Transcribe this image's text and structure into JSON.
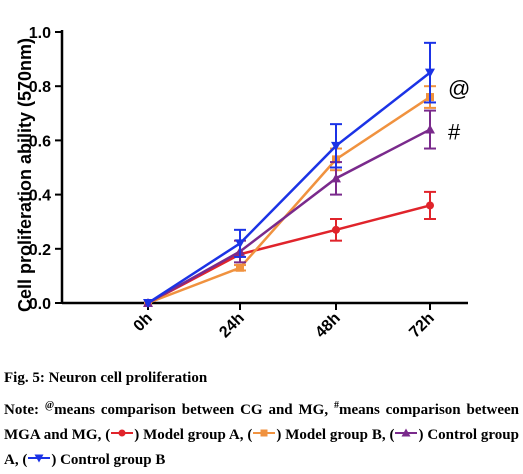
{
  "chart_data": {
    "type": "line",
    "ylabel": "Cell proliferation ability (570nm)",
    "xlabel": "",
    "categories": [
      "0h",
      "24h",
      "48h",
      "72h"
    ],
    "ylim": [
      0.0,
      1.0
    ],
    "yticks": [
      "0.0",
      "0.2",
      "0.4",
      "0.6",
      "0.8",
      "1.0"
    ],
    "legend": "none",
    "series": [
      {
        "name": "Model group A",
        "color": "#e0242b",
        "marker": "circle",
        "values": [
          0.0,
          0.18,
          0.27,
          0.36
        ],
        "errors": [
          0.0,
          0.0,
          0.04,
          0.05
        ]
      },
      {
        "name": "Model group B",
        "color": "#f0923f",
        "marker": "square",
        "values": [
          0.0,
          0.13,
          0.53,
          0.76
        ],
        "errors": [
          0.0,
          0.01,
          0.04,
          0.04
        ]
      },
      {
        "name": "Control group A",
        "color": "#7a2a8c",
        "marker": "triangle-up",
        "values": [
          0.0,
          0.19,
          0.46,
          0.64
        ],
        "errors": [
          0.0,
          0.04,
          0.06,
          0.07
        ]
      },
      {
        "name": "Control group B",
        "color": "#1b33e6",
        "marker": "triangle-down",
        "values": [
          0.0,
          0.22,
          0.58,
          0.85
        ],
        "errors": [
          0.0,
          0.05,
          0.08,
          0.11
        ]
      }
    ],
    "annotations": [
      {
        "text": "@",
        "category": "72h",
        "y": 0.79
      },
      {
        "text": "#",
        "category": "72h",
        "y": 0.63
      }
    ]
  },
  "caption": {
    "title": "Fig. 5: Neuron cell proliferation",
    "note_prefix": "Note: ",
    "sup_at": "@",
    "note_at_text": "means comparison between CG and MG, ",
    "sup_hash": "#",
    "note_hash_text": "means comparison between MGA and MG, (",
    "label_a": ") Model group A, (",
    "label_b": ") Model group B, (",
    "label_c": ") Control group A, (",
    "label_d": ") Control group B"
  }
}
